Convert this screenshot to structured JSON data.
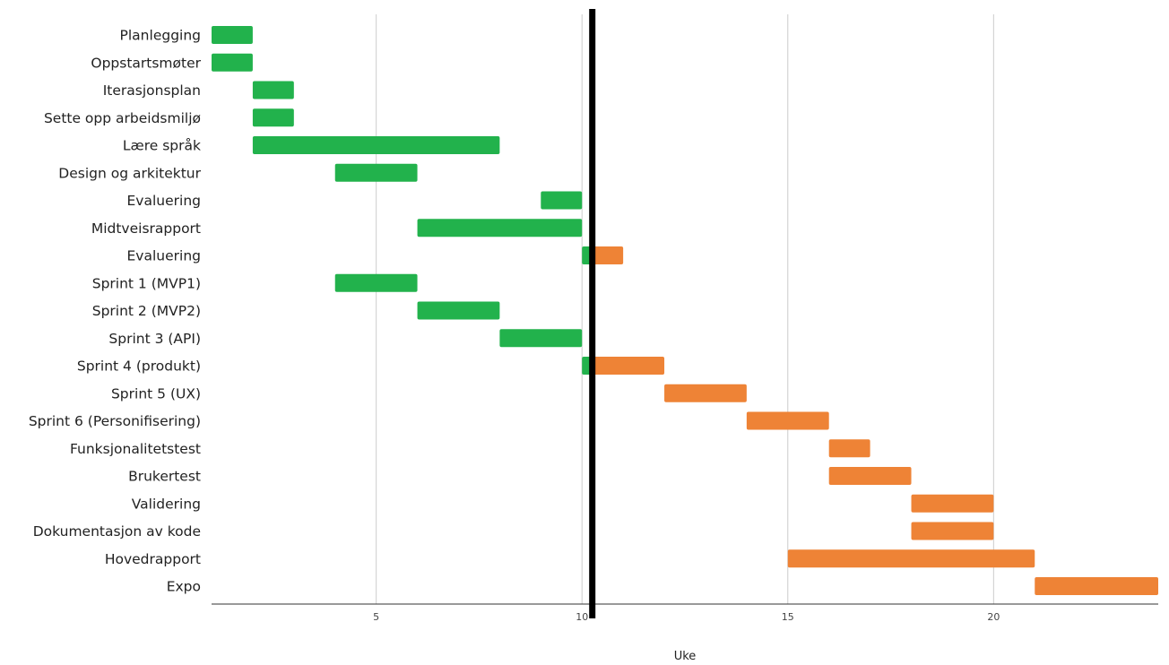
{
  "chart_data": {
    "type": "bar",
    "subtype": "gantt",
    "title": "",
    "xlabel": "Uke",
    "ylabel": "",
    "xlim": [
      1,
      24
    ],
    "xticks": [
      5,
      10,
      15,
      20
    ],
    "grid": "vertical",
    "current_week_marker": 10.25,
    "colors": {
      "completed": "#22b24c",
      "remaining": "#ee8336",
      "marker": "#000000",
      "grid": "#cccccc"
    },
    "tasks": [
      {
        "name": "Planlegging",
        "start": 1,
        "end": 2
      },
      {
        "name": "Oppstartsmøter",
        "start": 1,
        "end": 2
      },
      {
        "name": "Iterasjonsplan",
        "start": 2,
        "end": 3
      },
      {
        "name": "Sette opp arbeidsmiljø",
        "start": 2,
        "end": 3
      },
      {
        "name": "Lære språk",
        "start": 2,
        "end": 8
      },
      {
        "name": "Design og arkitektur",
        "start": 4,
        "end": 6
      },
      {
        "name": "Evaluering",
        "start": 9,
        "end": 10
      },
      {
        "name": "Midtveisrapport",
        "start": 6,
        "end": 10
      },
      {
        "name": "Evaluering",
        "start": 10,
        "end": 11
      },
      {
        "name": "Sprint 1 (MVP1)",
        "start": 4,
        "end": 6
      },
      {
        "name": "Sprint 2 (MVP2)",
        "start": 6,
        "end": 8
      },
      {
        "name": "Sprint 3 (API)",
        "start": 8,
        "end": 10
      },
      {
        "name": "Sprint 4 (produkt)",
        "start": 10,
        "end": 12
      },
      {
        "name": "Sprint 5 (UX)",
        "start": 12,
        "end": 14
      },
      {
        "name": "Sprint 6 (Personifisering)",
        "start": 14,
        "end": 16
      },
      {
        "name": "Funksjonalitetstest",
        "start": 16,
        "end": 17
      },
      {
        "name": "Brukertest",
        "start": 16,
        "end": 18
      },
      {
        "name": "Validering",
        "start": 18,
        "end": 20
      },
      {
        "name": "Dokumentasjon av kode",
        "start": 18,
        "end": 20
      },
      {
        "name": "Hovedrapport",
        "start": 15,
        "end": 21
      },
      {
        "name": "Expo",
        "start": 21,
        "end": 24
      }
    ]
  }
}
